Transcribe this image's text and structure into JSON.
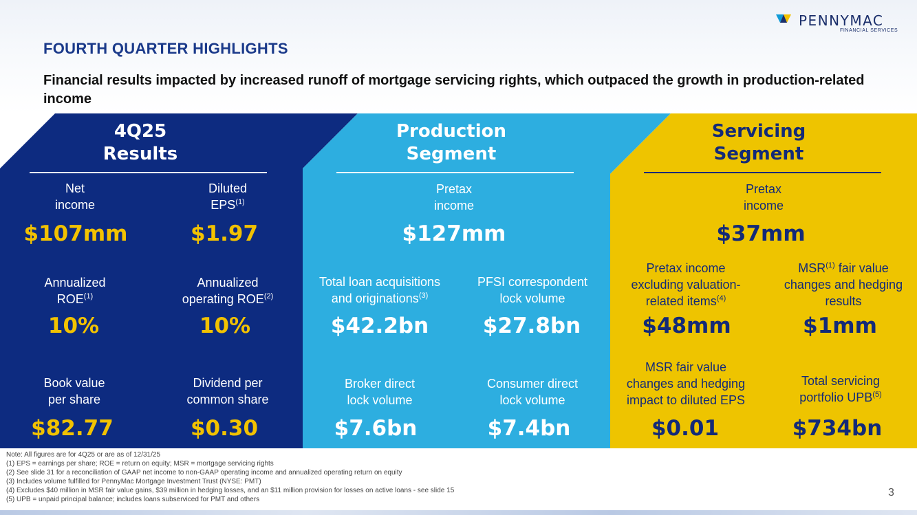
{
  "brand": {
    "name": "PENNYMAC",
    "tagline": "FINANCIAL SERVICES",
    "colors": {
      "navy": "#0d2b80",
      "sky": "#2daee0",
      "gold": "#eec400",
      "gold_text": "#f2c200",
      "dark_navy_text": "#132a78"
    }
  },
  "title": "FOURTH QUARTER HIGHLIGHTS",
  "subtitle": "Financial results impacted by increased runoff of mortgage servicing rights, which outpaced the growth in production-related income",
  "results": {
    "header_line1": "4Q25",
    "header_line2": "Results",
    "metrics": [
      {
        "label_line1": "Net",
        "label_line2": "income",
        "sup": "",
        "value": "$107mm"
      },
      {
        "label_line1": "Diluted",
        "label_line2": "EPS",
        "sup": "(1)",
        "value": "$1.97"
      },
      {
        "label_line1": "Annualized",
        "label_line2": "ROE",
        "sup": "(1)",
        "value": "10%"
      },
      {
        "label_line1": "Annualized",
        "label_line2": "operating ROE",
        "sup": "(2)",
        "value": "10%"
      },
      {
        "label_line1": "Book value",
        "label_line2": "per share",
        "sup": "",
        "value": "$82.77"
      },
      {
        "label_line1": "Dividend per",
        "label_line2": "common share",
        "sup": "",
        "value": "$0.30"
      }
    ]
  },
  "production": {
    "header_line1": "Production",
    "header_line2": "Segment",
    "top": {
      "label_line1": "Pretax",
      "label_line2": "income",
      "value": "$127mm"
    },
    "metrics": [
      {
        "label_line1": "Total loan acquisitions",
        "label_line2": "and originations",
        "sup": "(3)",
        "value": "$42.2bn"
      },
      {
        "label_line1": "PFSI correspondent",
        "label_line2": "lock volume",
        "sup": "",
        "value": "$27.8bn"
      },
      {
        "label_line1": "Broker direct",
        "label_line2": "lock volume",
        "sup": "",
        "value": "$7.6bn"
      },
      {
        "label_line1": "Consumer direct",
        "label_line2": "lock volume",
        "sup": "",
        "value": "$7.4bn"
      }
    ]
  },
  "servicing": {
    "header_line1": "Servicing",
    "header_line2": "Segment",
    "top": {
      "label_line1": "Pretax",
      "label_line2": "income",
      "value": "$37mm"
    },
    "metrics": [
      {
        "label_line1": "Pretax income",
        "label_line2": "excluding valuation-",
        "label_line3": "related items",
        "sup": "(4)",
        "value": "$48mm"
      },
      {
        "label_line1_pre": "MSR",
        "label_line1_sup": "(1)",
        "label_line1_post": " fair value",
        "label_line2": "changes and hedging",
        "label_line3": "results",
        "value": "$1mm"
      },
      {
        "label_line1": "MSR fair value",
        "label_line2": "changes and hedging",
        "label_line3": "impact to diluted EPS",
        "value": "$0.01"
      },
      {
        "label_line1": "Total servicing",
        "label_line2": "portfolio UPB",
        "sup": "(5)",
        "value": "$734bn"
      }
    ]
  },
  "notes": [
    "Note: All figures are for 4Q25 or are as of 12/31/25",
    "(1) EPS = earnings per share; ROE = return on equity; MSR = mortgage servicing rights",
    "(2) See slide 31 for a reconciliation of GAAP net income to non-GAAP operating income and annualized operating return on equity",
    "(3) Includes volume fulfilled for PennyMac Mortgage Investment Trust (NYSE: PMT)",
    "(4) Excludes $40 million in MSR fair value gains, $39 million in hedging losses, and an $11 million provision for losses on active loans - see slide 15",
    "(5) UPB = unpaid principal balance; includes loans subserviced for PMT and others"
  ],
  "page_number": "3"
}
